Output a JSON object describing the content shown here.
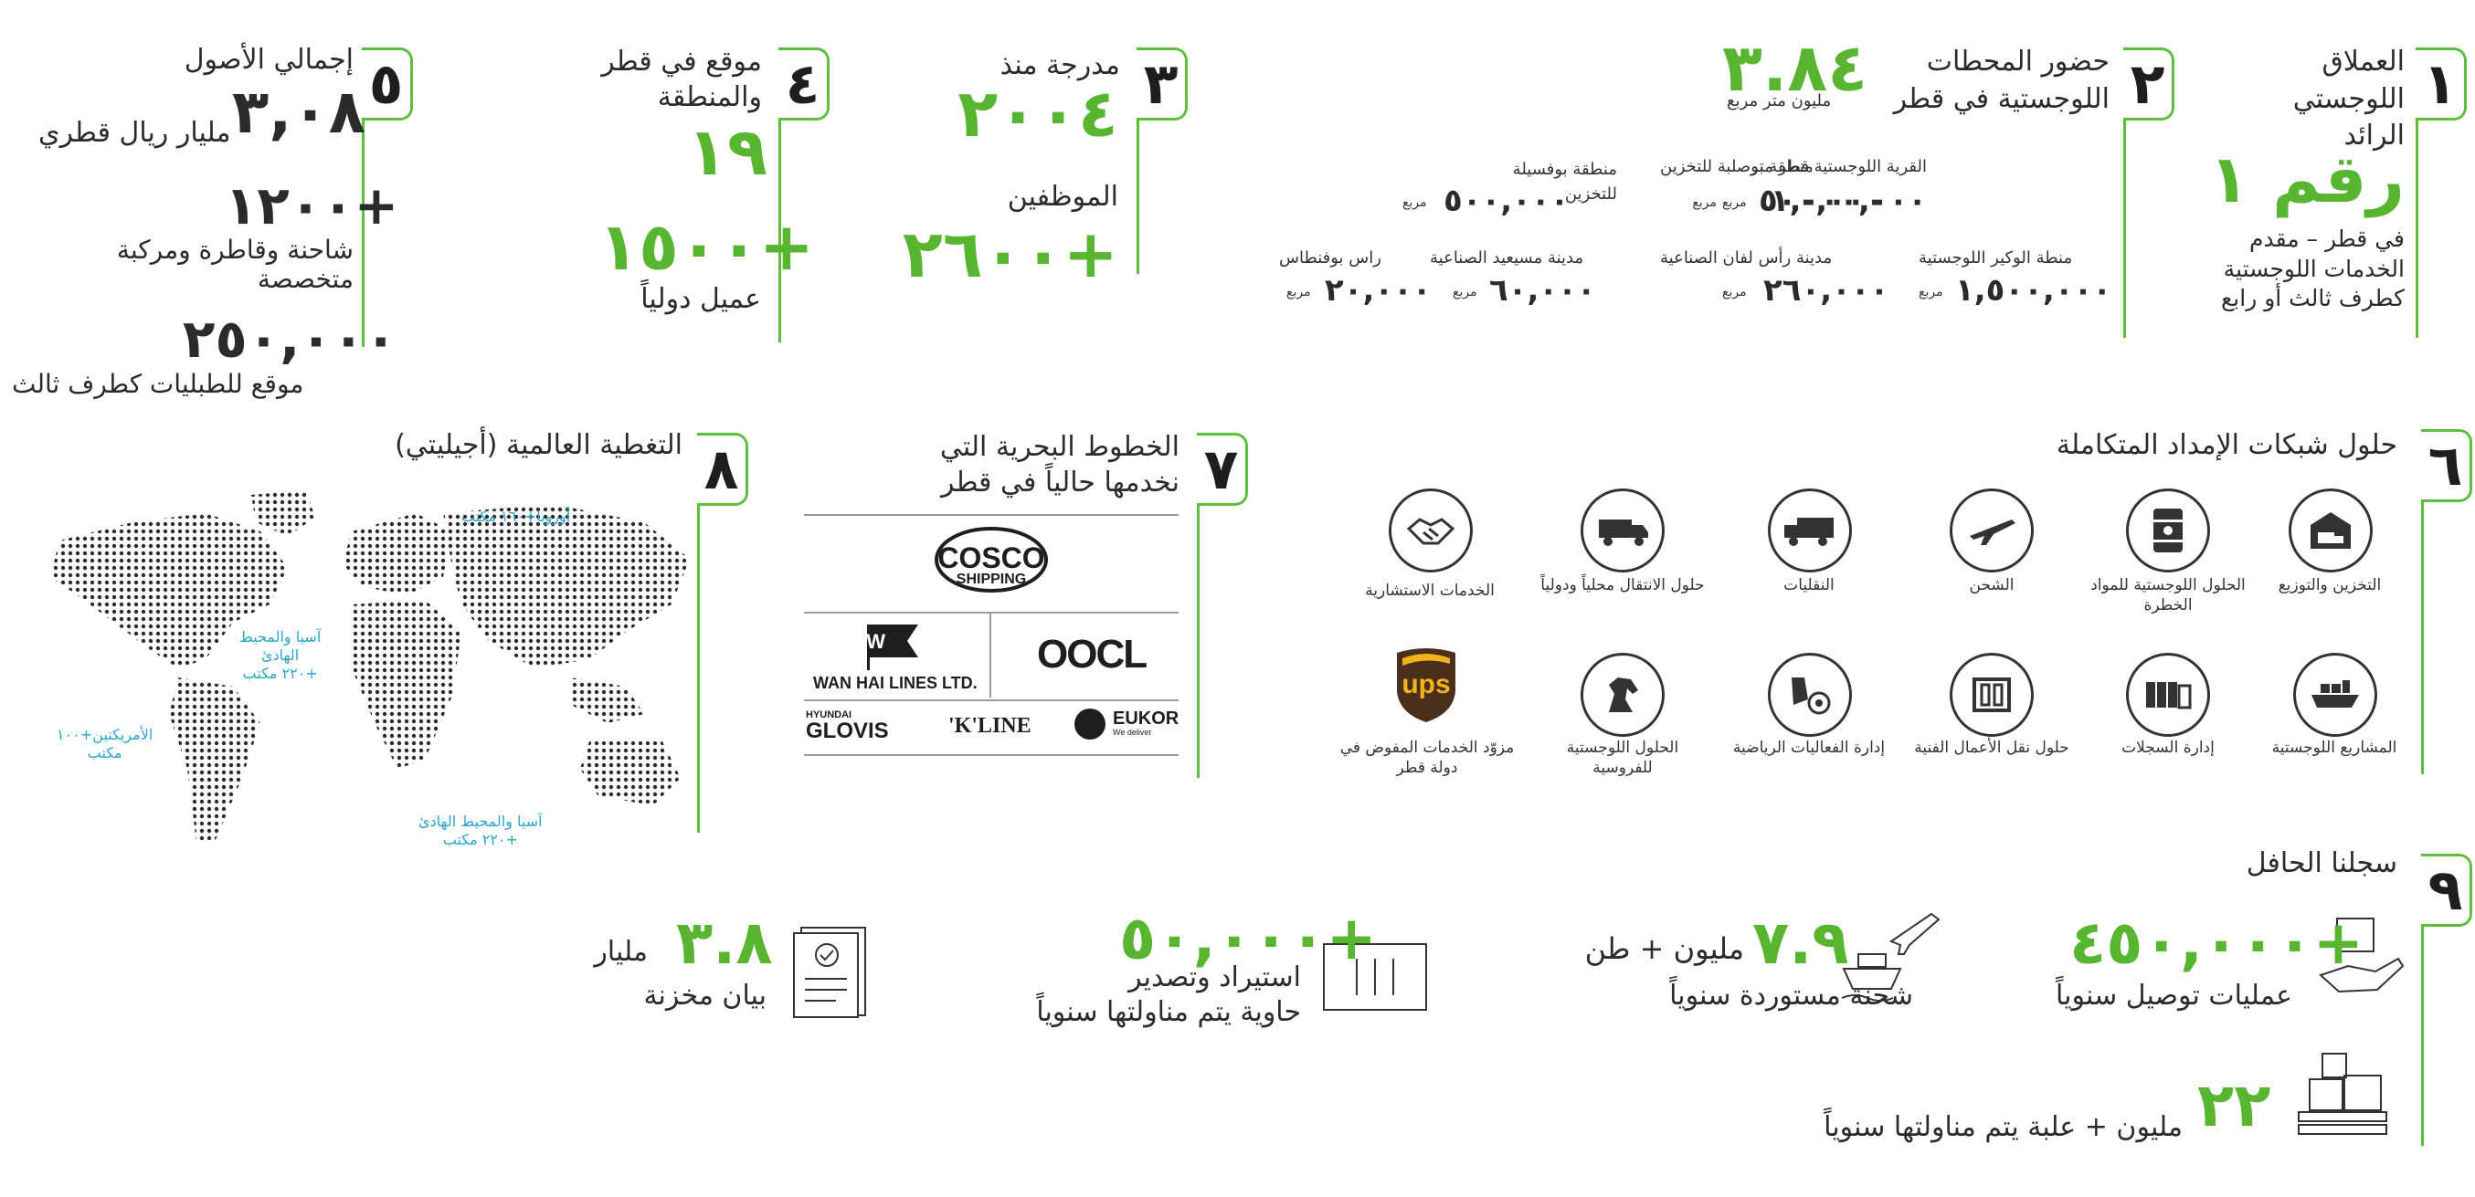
{
  "s1": {
    "num": "١",
    "title": [
      "العملاق",
      "اللوجستي",
      "الرائد"
    ],
    "rank": "رقم ١",
    "desc": [
      "في قطر – مقدم",
      "الخدمات اللوجستية",
      "كطرف ثالث أو رابع"
    ]
  },
  "s2": {
    "num": "٢",
    "title": [
      "حضور المحطات",
      "اللوجستية في قطر"
    ],
    "big": "٣.٨٤",
    "big_unit": "مليون متر مربع",
    "sites": [
      {
        "name": "القرية اللوجستية قطر متر",
        "value": "١,٠٠٠,٠٠٠",
        "unit": "مربع"
      },
      {
        "name": "منطقة بوصلبة للتخزين",
        "value": "٥٠٠,٠٠٠",
        "unit": "مربع"
      },
      {
        "name": "منطقة بوفسيلة للتخزين",
        "value": "٥٠٠,٠٠٠",
        "unit": "مربع"
      },
      {
        "name": "منطة الوكير اللوجستية",
        "value": "١,٥٠٠,٠٠٠",
        "unit": "مربع"
      },
      {
        "name": "مدينة رأس لفان الصناعية",
        "value": "٢٦٠,٠٠٠",
        "unit": "مربع"
      },
      {
        "name": "مدينة مسيعيد الصناعية",
        "value": "٦٠,٠٠٠",
        "unit": "مربع"
      },
      {
        "name": "راس بوفنطاس",
        "value": "٢٠,٠٠٠",
        "unit": "مربع"
      }
    ]
  },
  "s3": {
    "num": "٣",
    "listed": "مدرجة منذ",
    "year": "٢٠٠٤",
    "employees_label": "الموظفين",
    "employees": "+٢٦٠٠"
  },
  "s4": {
    "num": "٤",
    "title": [
      "موقع في قطر",
      "والمنطقة"
    ],
    "sites": "١٩",
    "clients": "+١٥٠٠",
    "clients_label": "عميل دولياً"
  },
  "s5": {
    "num": "٥",
    "title": "إجمالي الأصول",
    "assets": "٣,٠٨",
    "assets_unit": "مليار ريال قطري",
    "trucks": "+١٢٠٠",
    "trucks_label": [
      "شاحنة وقاطرة ومركبة",
      "متخصصة"
    ],
    "locations": "٢٥٠,٠٠٠",
    "locations_label": "موقع للطبليات كطرف ثالث"
  },
  "s6": {
    "num": "٦",
    "title": "حلول شبكات الإمداد المتكاملة",
    "row1": [
      {
        "label": "التخزين والتوزيع",
        "icon": "warehouse-truck-icon"
      },
      {
        "label": "الحلول اللوجستية للمواد الخطرة",
        "icon": "hazard-barrel-icon"
      },
      {
        "label": "الشحن",
        "icon": "airplane-icon"
      },
      {
        "label": "النقليات",
        "icon": "truck-icon"
      },
      {
        "label": "حلول الانتقال محلياً ودولياً",
        "icon": "moving-van-icon"
      },
      {
        "label": "الخدمات الاستشارية",
        "icon": "handshake-icon"
      }
    ],
    "row2": [
      {
        "label": "المشاريع اللوجستية",
        "icon": "cargo-ship-icon"
      },
      {
        "label": "إدارة السجلات",
        "icon": "records-binders-icon"
      },
      {
        "label": "حلول نقل الأعمال الفنية",
        "icon": "art-frame-icon"
      },
      {
        "label": "إدارة الفعاليات الرياضية",
        "icon": "sports-icon"
      },
      {
        "label": "الحلول اللوجستية للفروسية",
        "icon": "horse-icon"
      },
      {
        "label": "مزوّد الخدمات المفوض في دولة قطر",
        "icon": "ups-logo"
      }
    ],
    "ups": "ups"
  },
  "s7": {
    "num": "٧",
    "title": [
      "الخطوط البحرية التي",
      "نخدمها حالياً في قطر"
    ],
    "cosco": [
      "COSCO",
      "SHIPPING"
    ],
    "wanhai": "WAN HAI LINES LTD.",
    "oocl": "OOCL",
    "hyundai": [
      "HYUNDAI",
      "GLOVIS"
    ],
    "kline": "'K'LINE",
    "eukor": "EUKOR",
    "eukor_sub": "We deliver"
  },
  "s8": {
    "num": "٨",
    "title": "التغطية العالمية (أجيليتي)",
    "labels": {
      "europe": "أوروبا+١٦٠ مكتب",
      "asia1": [
        "آسيا والمحيط",
        "الهادئ",
        "+٢٢٠ مكتب"
      ],
      "americas": [
        "الأمريكتين+١٠٠",
        "مكتب"
      ],
      "asia2": [
        "آسيا والمحيط الهادئ",
        "+٢٢٠ مكتب"
      ]
    }
  },
  "s9": {
    "num": "٩",
    "title": "سجلنا الحافل",
    "deliveries": "+٤٥٠,٠٠٠",
    "deliveries_label": "عمليات توصيل سنوياً",
    "tons": "٧.٩",
    "tons_unit": "مليون + طن",
    "tons_label": "شحنة مستوردة سنوياً",
    "containers": "+٥٠,٠٠٠",
    "containers_label": [
      "استيراد وتصدير",
      "حاوية يتم مناولتها سنوياً"
    ],
    "records": "٣.٨",
    "records_unit": "مليار",
    "records_label": "بيان مخزنة",
    "boxes": "٢٢",
    "boxes_label": "مليون + علبة يتم مناولتها سنوياً"
  },
  "colors": {
    "green": "#58b52f",
    "dark": "#2b2b2b",
    "map_label": "#2aa7c9"
  }
}
